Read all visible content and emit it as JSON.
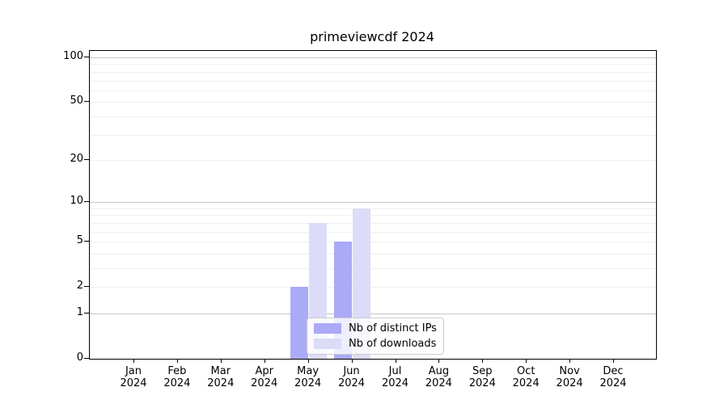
{
  "chart_data": {
    "type": "bar",
    "title": "primeviewcdf 2024",
    "categories": [
      "Jan",
      "Feb",
      "Mar",
      "Apr",
      "May",
      "Jun",
      "Jul",
      "Aug",
      "Sep",
      "Oct",
      "Nov",
      "Dec"
    ],
    "category_year": "2024",
    "series": [
      {
        "name": "Nb of distinct IPs",
        "color": "#aaaaf7",
        "values": [
          0,
          0,
          0,
          0,
          2,
          5,
          0,
          0,
          0,
          0,
          0,
          0
        ]
      },
      {
        "name": "Nb of downloads",
        "color": "#dcdcf8",
        "values": [
          0,
          0,
          0,
          0,
          7,
          9,
          0,
          0,
          0,
          0,
          0,
          0
        ]
      }
    ],
    "y_scale": "log1p",
    "y_tick_labels": [
      0,
      1,
      2,
      5,
      10,
      20,
      50,
      100
    ],
    "ylim": [
      0,
      110.5
    ],
    "grid": {
      "major_lines": [
        1,
        10,
        100
      ],
      "minor_lines": [
        2,
        3,
        4,
        5,
        6,
        7,
        8,
        9,
        20,
        30,
        40,
        50,
        60,
        70,
        80,
        90
      ],
      "major_color": "#c6c6c6",
      "minor_color": "#efefef"
    },
    "legend": {
      "position": "lower-center",
      "background": "rgba(255,255,255,0.8)",
      "border_color": "#cccccc"
    },
    "axis_color": "#000000",
    "background": "#ffffff"
  }
}
